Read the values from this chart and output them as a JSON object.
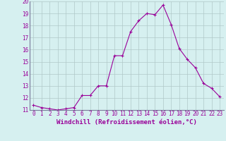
{
  "x": [
    0,
    1,
    2,
    3,
    4,
    5,
    6,
    7,
    8,
    9,
    10,
    11,
    12,
    13,
    14,
    15,
    16,
    17,
    18,
    19,
    20,
    21,
    22,
    23
  ],
  "y": [
    11.4,
    11.2,
    11.1,
    11.0,
    11.1,
    11.2,
    12.2,
    12.2,
    13.0,
    13.0,
    15.5,
    15.5,
    17.5,
    18.4,
    19.0,
    18.9,
    19.7,
    18.1,
    16.1,
    15.2,
    14.5,
    13.2,
    12.8,
    12.1
  ],
  "line_color": "#990099",
  "marker": "+",
  "marker_size": 3,
  "marker_linewidth": 0.8,
  "background_color": "#d6f0f0",
  "grid_color": "#b0c8c8",
  "xlabel": "Windchill (Refroidissement éolien,°C)",
  "ylabel": "",
  "ylim": [
    11,
    20
  ],
  "xlim_min": -0.5,
  "xlim_max": 23.5,
  "yticks": [
    11,
    12,
    13,
    14,
    15,
    16,
    17,
    18,
    19,
    20
  ],
  "xticks": [
    0,
    1,
    2,
    3,
    4,
    5,
    6,
    7,
    8,
    9,
    10,
    11,
    12,
    13,
    14,
    15,
    16,
    17,
    18,
    19,
    20,
    21,
    22,
    23
  ],
  "tick_label_fontsize": 5.5,
  "xlabel_fontsize": 6.5,
  "line_width": 0.8
}
